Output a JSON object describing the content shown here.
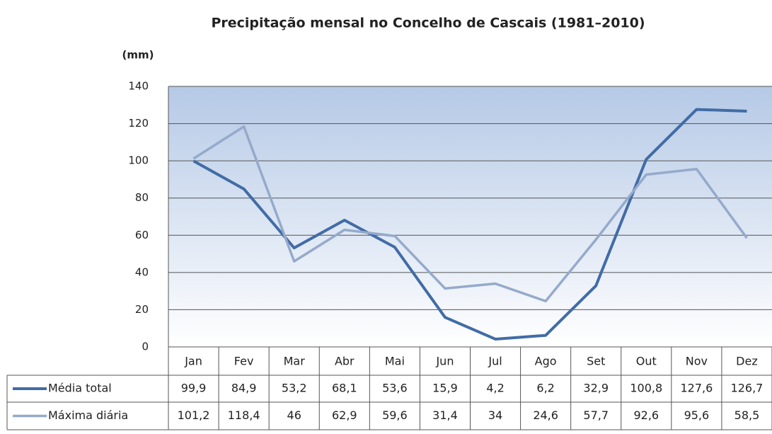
{
  "chart_data": {
    "type": "line",
    "title": "Precipitação mensal no Concelho de Cascais (1981–2010)",
    "y_label": "(mm)",
    "categories": [
      "Jan",
      "Fev",
      "Mar",
      "Abr",
      "Mai",
      "Jun",
      "Jul",
      "Ago",
      "Set",
      "Out",
      "Nov",
      "Dez"
    ],
    "series": [
      {
        "name": "Média total",
        "color": "#416ca6",
        "values": [
          99.9,
          84.9,
          53.2,
          68.1,
          53.6,
          15.9,
          4.2,
          6.2,
          32.9,
          100.8,
          127.6,
          126.7
        ],
        "value_labels": [
          "99,9",
          "84,9",
          "53,2",
          "68,1",
          "53,6",
          "15,9",
          "4,2",
          "6,2",
          "32,9",
          "100,8",
          "127,6",
          "126,7"
        ]
      },
      {
        "name": "Máxima diária",
        "color": "#95aacb",
        "values": [
          101.2,
          118.4,
          46,
          62.9,
          59.6,
          31.4,
          34,
          24.6,
          57.7,
          92.6,
          95.6,
          58.5
        ],
        "value_labels": [
          "101,2",
          "118,4",
          "46",
          "62,9",
          "59,6",
          "31,4",
          "34",
          "24,6",
          "57,7",
          "92,6",
          "95,6",
          "58,5"
        ]
      }
    ],
    "ylim": [
      0,
      140
    ],
    "yticks": [
      0,
      20,
      40,
      60,
      80,
      100,
      120,
      140
    ],
    "grid": true
  }
}
